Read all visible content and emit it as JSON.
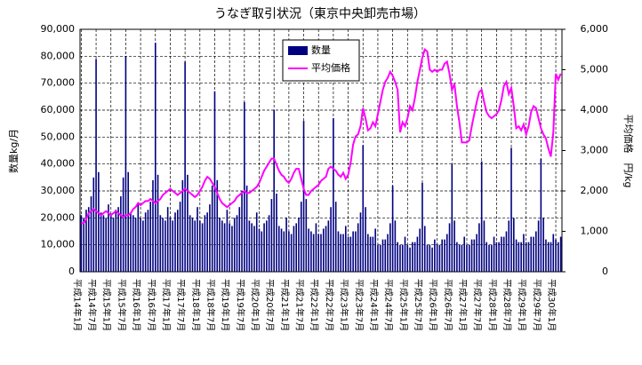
{
  "chart_data": {
    "type": "bar",
    "title": "うなぎ取引状況（東京中央卸売市場）",
    "ylabel": "数量kg/月",
    "y2label": "平均価格　円/kg",
    "categories": [
      "平成14年1月",
      null,
      null,
      null,
      null,
      null,
      "平成14年7月",
      null,
      null,
      null,
      null,
      null,
      "平成15年1月",
      null,
      null,
      null,
      null,
      null,
      "平成15年7月",
      null,
      null,
      null,
      null,
      null,
      "平成16年1月",
      null,
      null,
      null,
      null,
      null,
      "平成16年7月",
      null,
      null,
      null,
      null,
      null,
      "平成17年1月",
      null,
      null,
      null,
      null,
      null,
      "平成17年7月",
      null,
      null,
      null,
      null,
      null,
      "平成18年1月",
      null,
      null,
      null,
      null,
      null,
      "平成18年7月",
      null,
      null,
      null,
      null,
      null,
      "平成19年1月",
      null,
      null,
      null,
      null,
      null,
      "平成19年7月",
      null,
      null,
      null,
      null,
      null,
      "平成20年1月",
      null,
      null,
      null,
      null,
      null,
      "平成20年7月",
      null,
      null,
      null,
      null,
      null,
      "平成21年1月",
      null,
      null,
      null,
      null,
      null,
      "平成21年7月",
      null,
      null,
      null,
      null,
      null,
      "平成22年1月",
      null,
      null,
      null,
      null,
      null,
      "平成22年7月",
      null,
      null,
      null,
      null,
      null,
      "平成23年1月",
      null,
      null,
      null,
      null,
      null,
      "平成23年7月",
      null,
      null,
      null,
      null,
      null,
      "平成24年1月",
      null,
      null,
      null,
      null,
      null,
      "平成24年7月",
      null,
      null,
      null,
      null,
      null,
      "平成25年1月",
      null,
      null,
      null,
      null,
      null,
      "平成25年7月",
      null,
      null,
      null,
      null,
      null,
      "平成26年1月",
      null,
      null,
      null,
      null,
      null,
      "平成26年7月",
      null,
      null,
      null,
      null,
      null,
      "平成27年1月",
      null,
      null,
      null,
      null,
      null,
      "平成27年7月",
      null,
      null,
      null,
      null,
      null,
      "平成28年1月",
      null,
      null,
      null,
      null,
      null,
      "平成28年7月",
      null,
      null,
      null,
      null,
      null,
      "平成29年1月",
      null,
      null,
      null,
      null,
      null,
      "平成29年7月",
      null,
      null,
      null,
      null,
      null,
      "平成30年1月",
      null,
      null
    ],
    "series": [
      {
        "name": "数量",
        "color": "#000080",
        "values": [
          21000,
          20000,
          23000,
          24000,
          28000,
          35000,
          79000,
          37000,
          22000,
          21000,
          20000,
          25000,
          21000,
          20000,
          23000,
          24000,
          28000,
          35000,
          80000,
          37000,
          22000,
          21000,
          20000,
          25000,
          20000,
          19000,
          22000,
          23000,
          26000,
          34000,
          85000,
          36000,
          21000,
          20000,
          19000,
          24000,
          20000,
          19000,
          22000,
          23000,
          26000,
          34000,
          78000,
          36000,
          21000,
          20000,
          19000,
          24000,
          19000,
          18000,
          21000,
          22000,
          25000,
          32000,
          67000,
          34000,
          20000,
          19000,
          18000,
          23000,
          18000,
          17000,
          20000,
          21000,
          24000,
          30000,
          63000,
          32000,
          19000,
          18000,
          17000,
          22000,
          16000,
          15000,
          18000,
          19000,
          21000,
          27000,
          60000,
          29000,
          17000,
          16000,
          15000,
          20000,
          15000,
          14000,
          17000,
          18000,
          20000,
          26000,
          56000,
          27000,
          16000,
          15000,
          14000,
          18000,
          14000,
          14000,
          16000,
          17000,
          19000,
          24000,
          57000,
          26000,
          15000,
          14000,
          14000,
          17000,
          13000,
          13000,
          15000,
          15000,
          18000,
          22000,
          47000,
          24000,
          14000,
          13000,
          13000,
          16000,
          10000,
          10000,
          12000,
          12000,
          14000,
          18000,
          32000,
          19000,
          11000,
          10000,
          10000,
          13000,
          10000,
          9000,
          11000,
          11000,
          13000,
          16000,
          33000,
          17000,
          10000,
          10000,
          9000,
          12000,
          10000,
          10000,
          12000,
          12000,
          14000,
          18000,
          40000,
          19000,
          11000,
          10000,
          10000,
          13000,
          10000,
          10000,
          12000,
          12000,
          14000,
          18000,
          41000,
          19000,
          11000,
          10000,
          10000,
          13000,
          11000,
          11000,
          13000,
          13000,
          15000,
          19000,
          46000,
          20000,
          12000,
          11000,
          11000,
          14000,
          11000,
          11000,
          13000,
          13000,
          15000,
          19000,
          42000,
          20000,
          12000,
          11000,
          11000,
          14000,
          12000,
          11000,
          13000
        ]
      },
      {
        "name": "平均価格",
        "color": "#ff00ff",
        "type": "line",
        "axis": "y2",
        "values": [
          1200,
          1200,
          1300,
          1450,
          1500,
          1550,
          1500,
          1450,
          1400,
          1450,
          1500,
          1450,
          1400,
          1450,
          1500,
          1450,
          1400,
          1350,
          1400,
          1400,
          1450,
          1550,
          1600,
          1700,
          1650,
          1700,
          1750,
          1750,
          1800,
          1750,
          1700,
          1750,
          1800,
          1900,
          1950,
          2000,
          2050,
          2000,
          1950,
          1900,
          1950,
          2000,
          2050,
          2000,
          1950,
          1900,
          1850,
          1900,
          2000,
          2100,
          2250,
          2350,
          2300,
          2200,
          2100,
          1950,
          1800,
          1700,
          1650,
          1600,
          1650,
          1700,
          1750,
          1850,
          1900,
          1950,
          2000,
          1950,
          1950,
          2000,
          2050,
          2100,
          2200,
          2350,
          2500,
          2600,
          2700,
          2800,
          2800,
          2650,
          2500,
          2400,
          2350,
          2250,
          2200,
          2300,
          2450,
          2550,
          2550,
          2300,
          2050,
          1900,
          1900,
          2000,
          2050,
          2100,
          2150,
          2250,
          2300,
          2350,
          2550,
          2600,
          2550,
          2500,
          2400,
          2350,
          2450,
          2300,
          2400,
          2700,
          3150,
          3350,
          3400,
          3600,
          4050,
          3800,
          3500,
          3550,
          3700,
          3600,
          3900,
          4200,
          4500,
          4700,
          4800,
          4950,
          4850,
          4700,
          4500,
          3450,
          3700,
          3600,
          3800,
          4100,
          4000,
          4300,
          4700,
          5000,
          5300,
          5500,
          5450,
          5000,
          4950,
          5000,
          4950,
          5000,
          5000,
          5150,
          5200,
          4900,
          4500,
          4650,
          4100,
          3700,
          3200,
          3200,
          3200,
          3250,
          3600,
          3900,
          4200,
          4450,
          4500,
          4200,
          3950,
          3850,
          3800,
          3850,
          3900,
          4000,
          4250,
          4600,
          4700,
          4400,
          4550,
          4100,
          3550,
          3600,
          3500,
          3650,
          3400,
          3600,
          3950,
          4100,
          4050,
          3800,
          3550,
          3400,
          3300,
          3050,
          2850,
          3450,
          4900,
          4750,
          4900
        ]
      }
    ],
    "ylim": [
      0,
      90000
    ],
    "yticks": [
      0,
      {
        "value": 10000,
        "label": "10,000"
      },
      {
        "value": 20000,
        "label": "20,000"
      },
      {
        "value": 30000,
        "label": "30,000"
      },
      {
        "value": 40000,
        "label": "40,000"
      },
      {
        "value": 50000,
        "label": "50,000"
      },
      {
        "value": 60000,
        "label": "60,000"
      },
      {
        "value": 70000,
        "label": "70,000"
      },
      {
        "value": 80000,
        "label": "80,000"
      },
      {
        "value": 90000,
        "label": "90,000"
      }
    ],
    "y2lim": [
      0,
      6000
    ],
    "y2ticks": [
      0,
      {
        "value": 1000,
        "label": "1,000"
      },
      {
        "value": 2000,
        "label": "2,000"
      },
      {
        "value": 3000,
        "label": "3,000"
      },
      {
        "value": 4000,
        "label": "4,000"
      },
      {
        "value": 5000,
        "label": "5,000"
      },
      {
        "value": 6000,
        "label": "6,000"
      }
    ],
    "grid": true
  }
}
